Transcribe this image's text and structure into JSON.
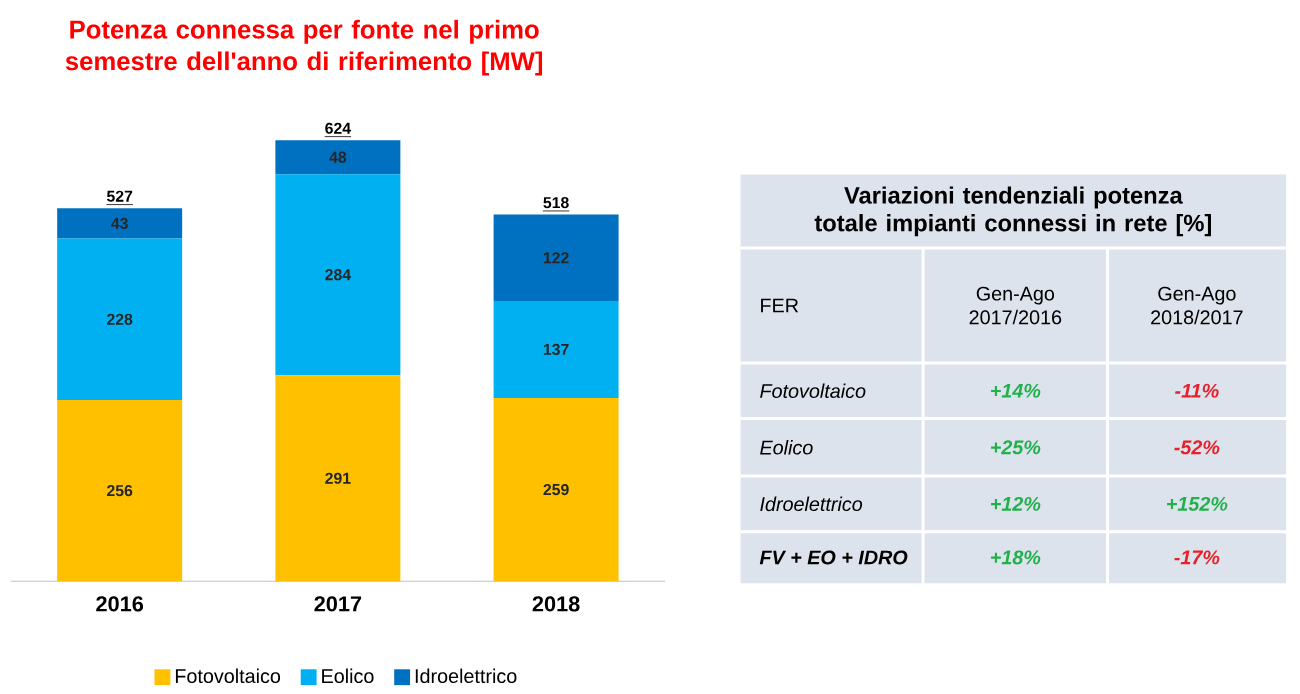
{
  "chart_data": [
    {
      "type": "bar",
      "title": "Potenza connessa per fonte nel primo semestre dell'anno di riferimento [MW]",
      "categories": [
        "2016",
        "2017",
        "2018"
      ],
      "stacked": true,
      "data_labels": true,
      "legend": "bottom",
      "totals": [
        "527",
        "624",
        "518"
      ],
      "series": [
        {
          "name": "Fotovoltaico",
          "color": "#ffc000",
          "values": [
            256,
            291,
            259
          ]
        },
        {
          "name": "Eolico",
          "color": "#00b0f0",
          "values": [
            228,
            284,
            137
          ]
        },
        {
          "name": "Idroelettrico",
          "color": "#0070c0",
          "values": [
            43,
            48,
            122
          ]
        }
      ]
    },
    {
      "type": "other",
      "title": "Variazioni tendenziali potenza totale impianti connessi in rete [%]",
      "annotations": [
        "FER",
        "Gen-Ago 2017/2016",
        "Gen-Ago 2018/2017",
        "Fotovoltaico",
        "+14%",
        "-11%",
        "Eolico",
        "+25%",
        "-52%",
        "Idroelettrico",
        "+12%",
        "+152%",
        "FV + EO + IDRO",
        "+18%",
        "-17%"
      ]
    }
  ]
}
